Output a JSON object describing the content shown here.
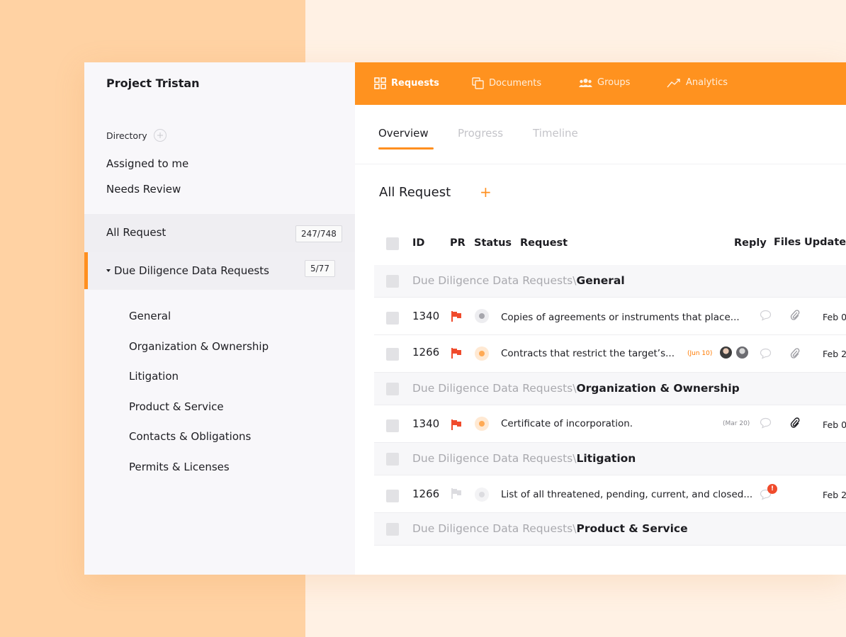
{
  "sidebar": {
    "project_title": "Project Tristan",
    "directory_label": "Directory",
    "links": [
      "Assigned to me",
      "Needs Review"
    ],
    "all_request": {
      "label": "All Request",
      "count": "247/748"
    },
    "due_diligence": {
      "label": "Due Diligence Data Requests",
      "count": "5/77"
    },
    "sub_items": [
      "General",
      "Organization & Ownership",
      "Litigation",
      "Product & Service",
      "Contacts & Obligations",
      "Permits & Licenses"
    ]
  },
  "topnav": {
    "items": [
      "Requests",
      "Documents",
      "Groups",
      "Analytics"
    ]
  },
  "tabs": [
    "Overview",
    "Progress",
    "Timeline"
  ],
  "section_title": "All Request",
  "section_add": "+",
  "table": {
    "headers": {
      "id": "ID",
      "pr": "PR",
      "status": "Status",
      "request": "Request",
      "reply": "Reply",
      "files": "Files",
      "updated": "Updated"
    },
    "group_prefix": "Due Diligence Data Requests",
    "group_sep": "\\",
    "groups": [
      "General",
      "Organization & Ownership",
      "Litigation",
      "Product & Service"
    ],
    "rows": [
      {
        "id": "1340",
        "request": "Copies of agreements or instruments that place...",
        "due": "",
        "date": "Feb 0",
        "status": "grey",
        "flag": "red"
      },
      {
        "id": "1266",
        "request": "Contracts that restrict the target’s...",
        "due": "(Jun 10)",
        "date": "Feb 2",
        "status": "orange",
        "flag": "red"
      },
      {
        "id": "1340",
        "request": "Certificate of incorporation.",
        "due": "(Mar 20)",
        "date": "Feb 0",
        "status": "orange",
        "flag": "red"
      },
      {
        "id": "1266",
        "request": "List of all threatened, pending, current, and closed...",
        "due": "",
        "date": "Feb 2",
        "status": "light",
        "flag": "grey"
      }
    ],
    "notification_mark": "!"
  },
  "colors": {
    "accent": "#ff921f",
    "flag_red": "#f04b2c",
    "due_orange": "#ff7a00"
  }
}
